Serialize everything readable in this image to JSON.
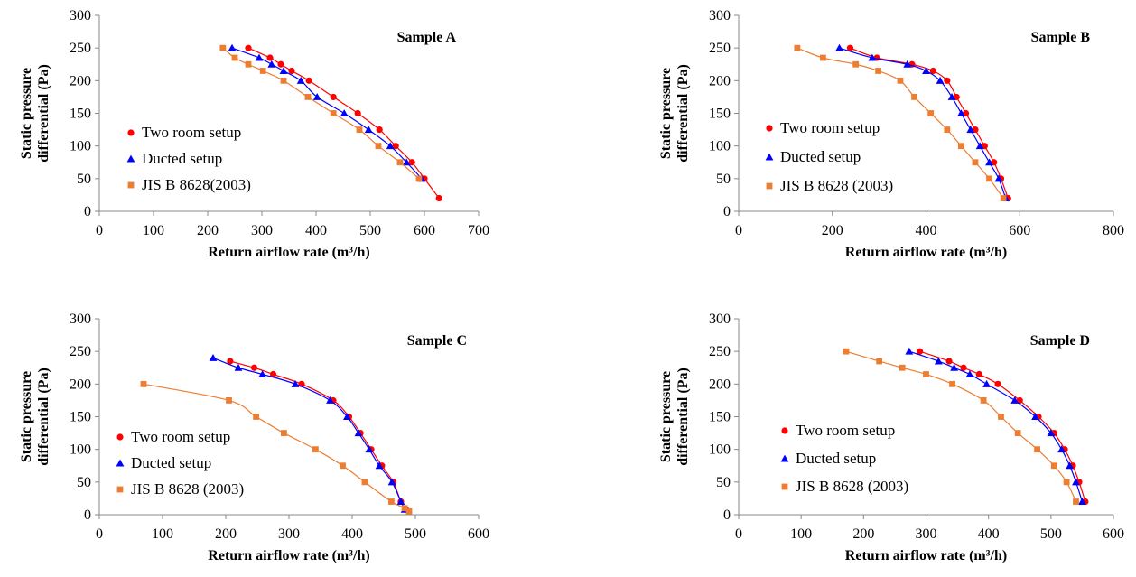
{
  "chart_data": [
    {
      "type": "scatter",
      "panel_label": "Sample A",
      "xlabel": "Return airflow rate (m³/h)",
      "ylabel": "Static pressure differential (Pa)",
      "xlim": [
        0,
        700
      ],
      "ylim": [
        0,
        300
      ],
      "xticks": [
        0,
        100,
        200,
        300,
        400,
        500,
        600,
        700
      ],
      "yticks": [
        0,
        50,
        100,
        150,
        200,
        250,
        300
      ],
      "grid": false,
      "legend_position": "left",
      "series": [
        {
          "name": "Two room setup",
          "color": "#ff0000",
          "marker": "circle",
          "x": [
            275,
            315,
            335,
            355,
            387,
            432,
            477,
            517,
            547,
            577,
            600,
            627
          ],
          "y": [
            250,
            235,
            225,
            215,
            200,
            175,
            150,
            125,
            100,
            75,
            50,
            20
          ]
        },
        {
          "name": "Ducted setup",
          "color": "#0000ff",
          "marker": "triangle",
          "x": [
            245,
            295,
            318,
            340,
            372,
            402,
            452,
            497,
            537,
            567,
            595
          ],
          "y": [
            250,
            235,
            225,
            215,
            200,
            175,
            150,
            125,
            100,
            75,
            50
          ]
        },
        {
          "name": "JIS B 8628(2003)",
          "color": "#ed7d31",
          "marker": "square",
          "x": [
            228,
            250,
            275,
            302,
            340,
            385,
            432,
            480,
            515,
            555,
            590
          ],
          "y": [
            250,
            235,
            225,
            215,
            200,
            175,
            150,
            125,
            100,
            75,
            50
          ]
        }
      ]
    },
    {
      "type": "scatter",
      "panel_label": "Sample B",
      "xlabel": "Return airflow rate (m³/h)",
      "ylabel": "Static pressure differential (Pa)",
      "xlim": [
        0,
        800
      ],
      "ylim": [
        0,
        300
      ],
      "xticks": [
        0,
        200,
        400,
        600,
        800
      ],
      "yticks": [
        0,
        50,
        100,
        150,
        200,
        250,
        300
      ],
      "grid": false,
      "legend_position": "left",
      "series": [
        {
          "name": "Two room setup",
          "color": "#ff0000",
          "marker": "circle",
          "x": [
            238,
            295,
            370,
            415,
            445,
            465,
            485,
            505,
            525,
            545,
            560,
            575
          ],
          "y": [
            250,
            235,
            225,
            215,
            200,
            175,
            150,
            125,
            100,
            75,
            50,
            20
          ]
        },
        {
          "name": "Ducted setup",
          "color": "#0000ff",
          "marker": "triangle",
          "x": [
            215,
            285,
            360,
            400,
            430,
            455,
            475,
            495,
            515,
            535,
            555,
            570
          ],
          "y": [
            250,
            235,
            225,
            215,
            200,
            175,
            150,
            125,
            100,
            75,
            50,
            20
          ]
        },
        {
          "name": "JIS B 8628 (2003)",
          "color": "#ed7d31",
          "marker": "square",
          "x": [
            125,
            180,
            250,
            298,
            345,
            375,
            410,
            445,
            475,
            505,
            535,
            565
          ],
          "y": [
            250,
            235,
            225,
            215,
            200,
            175,
            150,
            125,
            100,
            75,
            50,
            20
          ]
        }
      ]
    },
    {
      "type": "scatter",
      "panel_label": "Sample C",
      "xlabel": "Return airflow rate (m³/h)",
      "ylabel": "Static pressure differential (Pa)",
      "xlim": [
        0,
        600
      ],
      "ylim": [
        0,
        300
      ],
      "xticks": [
        0,
        100,
        200,
        300,
        400,
        500,
        600
      ],
      "yticks": [
        0,
        50,
        100,
        150,
        200,
        250,
        300
      ],
      "grid": false,
      "legend_position": "left",
      "series": [
        {
          "name": "Two room setup",
          "color": "#ff0000",
          "marker": "circle",
          "x": [
            207,
            245,
            275,
            320,
            370,
            395,
            413,
            430,
            447,
            465,
            477,
            485
          ],
          "y": [
            235,
            225,
            215,
            200,
            175,
            150,
            125,
            100,
            75,
            50,
            20,
            8
          ]
        },
        {
          "name": "Ducted setup",
          "color": "#0000ff",
          "marker": "triangle",
          "x": [
            180,
            220,
            258,
            310,
            365,
            392,
            410,
            427,
            443,
            463,
            477,
            483
          ],
          "y": [
            240,
            225,
            215,
            200,
            175,
            150,
            125,
            100,
            75,
            50,
            20,
            8
          ]
        },
        {
          "name": "JIS B 8628 (2003)",
          "color": "#ed7d31",
          "marker": "square",
          "x": [
            70,
            205,
            248,
            292,
            342,
            385,
            420,
            462,
            483,
            490
          ],
          "y": [
            200,
            175,
            150,
            125,
            100,
            75,
            50,
            20,
            10,
            5
          ]
        }
      ]
    },
    {
      "type": "scatter",
      "panel_label": "Sample D",
      "xlabel": "Return airflow rate (m³/h)",
      "ylabel": "Static pressure differential (Pa)",
      "xlim": [
        0,
        600
      ],
      "ylim": [
        0,
        300
      ],
      "xticks": [
        0,
        100,
        200,
        300,
        400,
        500,
        600
      ],
      "yticks": [
        0,
        50,
        100,
        150,
        200,
        250,
        300
      ],
      "grid": false,
      "legend_position": "left",
      "series": [
        {
          "name": "Two room setup",
          "color": "#ff0000",
          "marker": "circle",
          "x": [
            290,
            337,
            360,
            385,
            415,
            450,
            480,
            505,
            522,
            535,
            545,
            555
          ],
          "y": [
            250,
            235,
            225,
            215,
            200,
            175,
            150,
            125,
            100,
            75,
            50,
            20
          ]
        },
        {
          "name": "Ducted setup",
          "color": "#0000ff",
          "marker": "triangle",
          "x": [
            273,
            320,
            345,
            370,
            397,
            442,
            475,
            500,
            517,
            530,
            540,
            550
          ],
          "y": [
            250,
            235,
            225,
            215,
            200,
            175,
            150,
            125,
            100,
            75,
            50,
            20
          ]
        },
        {
          "name": "JIS B 8628 (2003)",
          "color": "#ed7d31",
          "marker": "square",
          "x": [
            172,
            225,
            262,
            300,
            342,
            392,
            420,
            447,
            478,
            505,
            525,
            540
          ],
          "y": [
            250,
            235,
            225,
            215,
            200,
            175,
            150,
            125,
            100,
            75,
            50,
            20
          ]
        }
      ]
    }
  ]
}
